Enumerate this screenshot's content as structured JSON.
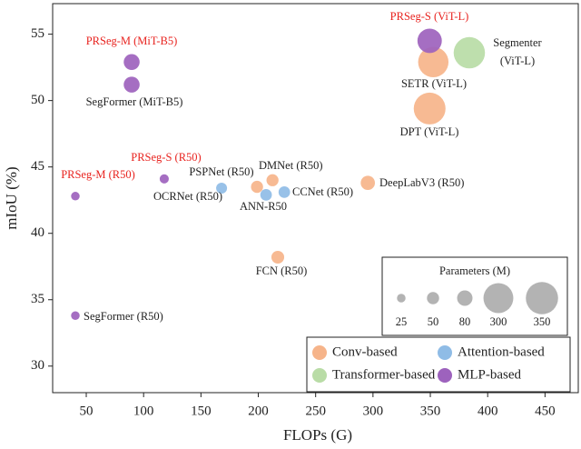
{
  "chart_data": {
    "type": "scatter",
    "x_label": "FLOPs (G)",
    "y_label": "mIoU (%)",
    "xlim": [
      20.7,
      479
    ],
    "ylim": [
      28,
      57.3
    ],
    "xticks": [
      50,
      100,
      150,
      200,
      250,
      300,
      350,
      400,
      450
    ],
    "yticks": [
      30,
      35,
      40,
      45,
      50,
      55
    ],
    "size_legend": {
      "title": "Parameters (M)",
      "values": [
        25,
        50,
        80,
        300,
        350
      ],
      "color": "#b3b3b3"
    },
    "legend_position": "lower right",
    "series": [
      {
        "name": "Conv-based",
        "color": "#f6b48a",
        "x": [
          198.9,
          212.4,
          295.5,
          217,
          352.6,
          349.4
        ],
        "values": [
          43.5,
          44.0,
          43.8,
          38.2,
          52.9,
          49.4
        ],
        "sizes": [
          49,
          49,
          68,
          55,
          310,
          340
        ],
        "labels": [
          "PSPNet (R50)",
          "DMNet (R50)",
          "DeepLabV3 (R50)",
          "FCN (R50)",
          "SETR (ViT-L)",
          "DPT (ViT-L)"
        ],
        "label_colors": [
          "#222",
          "#222",
          "#222",
          "#222",
          "#222",
          "#222"
        ]
      },
      {
        "name": "Attention-based",
        "color": "#8fbce6",
        "x": [
          168,
          206.8,
          222.7
        ],
        "values": [
          43.4,
          42.9,
          43.1
        ],
        "sizes": [
          40,
          45,
          45
        ],
        "labels": [
          "OCRNet (R50)",
          "ANN-R50",
          "CCNet (R50)"
        ],
        "label_colors": [
          "#222",
          "#222",
          "#222"
        ]
      },
      {
        "name": "Transformer-based",
        "color": "#b9dca6",
        "x": [
          384
        ],
        "values": [
          53.6
        ],
        "sizes": [
          330
        ],
        "labels": [
          [
            "Segmenter",
            "(ViT-L)"
          ]
        ],
        "label_colors": [
          "#222"
        ]
      },
      {
        "name": "MLP-based",
        "color": "#9d62bd",
        "x": [
          89.6,
          89.6,
          118,
          40.5,
          40.5,
          349.4
        ],
        "values": [
          52.9,
          51.2,
          44.1,
          42.8,
          33.8,
          54.5
        ],
        "sizes": [
          85,
          85,
          28,
          25,
          25,
          200
        ],
        "labels": [
          "PRSeg-M (MiT-B5)",
          "SegFormer (MiT-B5)",
          "PRSeg-S (R50)",
          "PRSeg-M (R50)",
          "SegFormer (R50)",
          "PRSeg-S (ViT-L)"
        ],
        "label_colors": [
          "#e8231f",
          "#222",
          "#e8231f",
          "#e8231f",
          "#222",
          "#e8231f"
        ]
      }
    ]
  }
}
